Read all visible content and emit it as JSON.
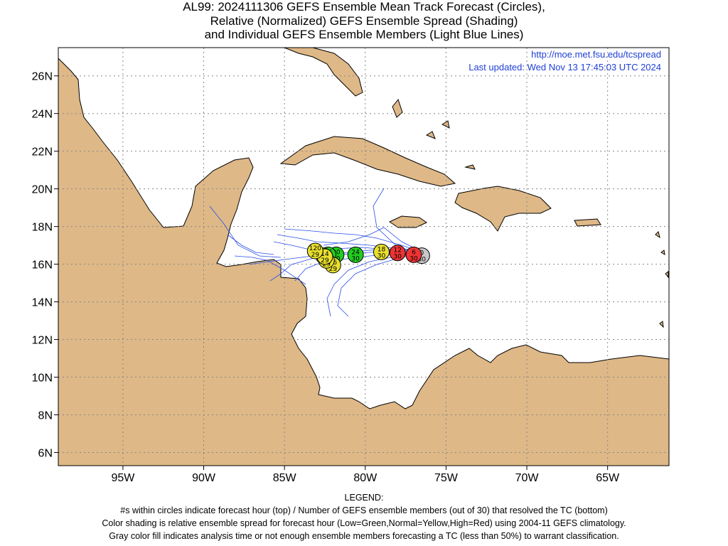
{
  "title": {
    "line1": "AL99: 2024111306 GEFS Ensemble Mean Track Forecast (Circles),",
    "line2": "Relative (Normalized) GEFS Ensemble Spread (Shading)",
    "line3": "and Individual GEFS Ensemble Members (Light Blue Lines)"
  },
  "source": {
    "url": "http://moe.met.fsu.edu/tcspread",
    "updated": "Last updated: Wed Nov 13 17:45:03 UTC 2024"
  },
  "map": {
    "lon_range": [
      -99,
      -61.2
    ],
    "lat_range": [
      5.3,
      27.5
    ],
    "lat_labels": [
      "26N",
      "24N",
      "22N",
      "20N",
      "18N",
      "16N",
      "14N",
      "12N",
      "10N",
      "8N",
      "6N"
    ],
    "lon_labels": [
      "95W",
      "90W",
      "85W",
      "80W",
      "75W",
      "70W",
      "65W"
    ],
    "land_color": "#deb887",
    "track_color": "#2a4ee8"
  },
  "track_points": [
    {
      "hour": "0",
      "members": "30",
      "lon": -76.5,
      "lat": 16.45,
      "color": "#c8c8c8"
    },
    {
      "hour": "6",
      "members": "30",
      "lon": -77.0,
      "lat": 16.5,
      "color": "#ee3333"
    },
    {
      "hour": "12",
      "members": "30",
      "lon": -78.0,
      "lat": 16.6,
      "color": "#ee3333"
    },
    {
      "hour": "18",
      "members": "30",
      "lon": -79.0,
      "lat": 16.65,
      "color": "#e8e030"
    },
    {
      "hour": "24",
      "members": "30",
      "lon": -80.6,
      "lat": 16.5,
      "color": "#22cc22"
    },
    {
      "hour": "30",
      "members": "30",
      "lon": -81.8,
      "lat": 16.5,
      "color": "#22cc22"
    },
    {
      "hour": "36",
      "members": "30",
      "lon": -82.3,
      "lat": 16.5,
      "color": "#22cc22"
    },
    {
      "hour": "42",
      "members": "30",
      "lon": -82.6,
      "lat": 16.45,
      "color": "#22cc22"
    },
    {
      "hour": "96",
      "members": "29",
      "lon": -82.0,
      "lat": 15.95,
      "color": "#e8e030"
    },
    {
      "hour": "72",
      "members": "29",
      "lon": -82.4,
      "lat": 16.2,
      "color": "#e8e030"
    },
    {
      "hour": "14",
      "members": "29",
      "lon": -82.5,
      "lat": 16.4,
      "color": "#e8e030"
    },
    {
      "hour": "120",
      "members": "29",
      "lon": -83.1,
      "lat": 16.7,
      "color": "#e8e030"
    }
  ],
  "legend": {
    "heading": "LEGEND:",
    "line1": "#s within circles indicate forecast hour (top) / Number of GEFS ensemble members (out of 30) that resolved the TC (bottom)",
    "line2": "Color shading is relative ensemble spread for forecast hour (Low=Green,Normal=Yellow,High=Red) using 2004-11 GEFS climatology.",
    "line3": "Gray color fill indicates analysis time or not enough ensemble members forecasting a TC (less than 50%) to warrant classification."
  }
}
